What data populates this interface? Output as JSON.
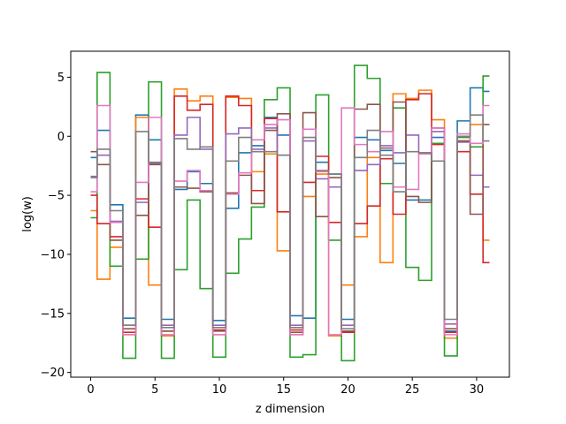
{
  "chart_data": {
    "type": "line",
    "step": "mid",
    "xlabel": "z dimension",
    "ylabel": "log(w)",
    "xlim": [
      -1.55,
      32.55
    ],
    "ylim": [
      -20.4,
      7.2
    ],
    "xticks": [
      0,
      5,
      10,
      15,
      20,
      25,
      30
    ],
    "yticks": [
      -20,
      -15,
      -10,
      -5,
      0,
      5
    ],
    "x": [
      0,
      1,
      2,
      3,
      4,
      5,
      6,
      7,
      8,
      9,
      10,
      11,
      12,
      13,
      14,
      15,
      16,
      17,
      18,
      19,
      20,
      21,
      22,
      23,
      24,
      25,
      26,
      27,
      28,
      29,
      30,
      31
    ],
    "series": [
      {
        "color": "#1f77b4",
        "values": [
          -1.8,
          0.5,
          -5.8,
          -15.4,
          1.8,
          -0.3,
          -15.5,
          -4.5,
          -3.0,
          -4.0,
          -15.6,
          -6.1,
          -1.4,
          -0.8,
          1.6,
          0.1,
          -15.2,
          -15.4,
          -2.2,
          -3.2,
          -15.5,
          -0.1,
          -0.3,
          -1.2,
          -2.3,
          -5.4,
          -5.4,
          -0.1,
          -16.5,
          1.3,
          4.1,
          3.8
        ]
      },
      {
        "color": "#ff7f0e",
        "values": [
          -6.3,
          -12.1,
          -9.4,
          -16.8,
          1.6,
          -12.6,
          -16.9,
          4.0,
          3.0,
          3.4,
          -16.8,
          3.3,
          3.2,
          -3.0,
          -1.5,
          -9.7,
          -16.8,
          -5.1,
          -3.2,
          -16.9,
          -12.6,
          -8.5,
          -1.8,
          -10.7,
          3.6,
          3.2,
          3.9,
          1.4,
          -17.1,
          -0.4,
          1.0,
          -8.8
        ]
      },
      {
        "color": "#2ca02c",
        "values": [
          -6.9,
          5.4,
          -11.0,
          -18.8,
          -10.4,
          4.6,
          -18.8,
          -11.3,
          -5.4,
          -12.9,
          -18.7,
          -11.6,
          -8.7,
          -6.0,
          3.1,
          4.1,
          -18.7,
          -18.5,
          3.5,
          -8.8,
          -19.0,
          6.0,
          4.9,
          -4.0,
          2.4,
          -11.1,
          -12.2,
          -0.6,
          -18.6,
          -0.1,
          -0.9,
          5.1
        ]
      },
      {
        "color": "#d62728",
        "values": [
          -5.0,
          -7.4,
          -8.5,
          -16.6,
          -5.3,
          -7.7,
          -16.5,
          3.4,
          2.2,
          2.7,
          -16.4,
          3.4,
          2.6,
          -4.6,
          1.5,
          -6.4,
          -16.4,
          -3.9,
          -1.7,
          -7.3,
          -16.6,
          -7.4,
          -5.9,
          -1.9,
          -6.6,
          3.1,
          3.6,
          -0.7,
          -16.6,
          -1.3,
          -4.9,
          -10.7
        ]
      },
      {
        "color": "#9467bd",
        "values": [
          -3.4,
          -1.6,
          -7.2,
          -16.0,
          -5.6,
          -2.3,
          -16.0,
          0.1,
          1.6,
          -1.1,
          -16.0,
          0.2,
          0.7,
          -1.1,
          0.7,
          -1.6,
          -16.0,
          -0.4,
          -3.6,
          -4.3,
          -16.0,
          -2.9,
          -2.4,
          -0.8,
          -1.4,
          0.1,
          -1.4,
          0.4,
          -15.9,
          -0.5,
          -3.3,
          -4.3
        ]
      },
      {
        "color": "#8c564b",
        "values": [
          -1.3,
          -2.4,
          -8.8,
          -16.3,
          -6.7,
          -2.4,
          -16.5,
          -4.3,
          -4.4,
          -4.7,
          -16.5,
          -4.8,
          -3.3,
          -5.7,
          0.5,
          1.9,
          -16.6,
          2.0,
          -6.8,
          -3.5,
          -16.5,
          2.3,
          2.7,
          -1.0,
          2.9,
          -5.1,
          -5.6,
          0.7,
          -16.3,
          -0.4,
          -6.6,
          1.0
        ]
      },
      {
        "color": "#e377c2",
        "values": [
          -4.7,
          2.6,
          -7.3,
          -16.8,
          -3.9,
          1.6,
          -16.8,
          -3.8,
          -2.9,
          -4.6,
          -16.8,
          -4.9,
          -3.1,
          -0.3,
          1.0,
          1.4,
          -16.8,
          0.6,
          -3.0,
          -16.8,
          2.4,
          -0.7,
          -1.3,
          0.4,
          -4.3,
          -4.5,
          -1.5,
          0.7,
          -16.8,
          0.2,
          -0.6,
          2.6
        ]
      },
      {
        "color": "#7f7f7f",
        "values": [
          -3.5,
          -1.1,
          -6.3,
          -16.0,
          0.4,
          -2.2,
          -16.2,
          -0.2,
          -1.1,
          -0.9,
          -16.2,
          -2.1,
          -0.1,
          -1.3,
          -1.3,
          -1.6,
          -16.2,
          -0.1,
          -2.9,
          -3.2,
          -16.3,
          -1.8,
          0.5,
          -1.6,
          -4.7,
          -1.3,
          -1.4,
          -2.1,
          -15.5,
          0.0,
          1.8,
          -0.4
        ]
      }
    ]
  }
}
